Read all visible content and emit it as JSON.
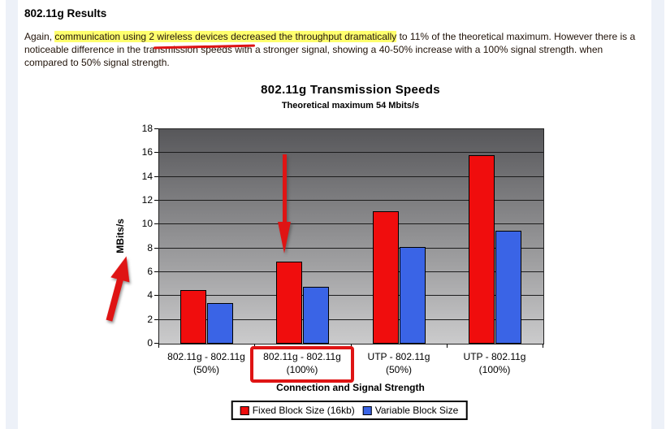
{
  "page": {
    "heading": "802.11g Results",
    "paragraph": {
      "pre": "Again, ",
      "highlighted": "communication using 2 wireless devices decreased the throughput dramatically",
      "post": " to 11% of the theoretical maximum. However there is a noticeable difference in the transmission speeds with a stronger signal, showing a 40-50% increase with a 100% signal strength. when compared to 50% signal strength."
    }
  },
  "chart_data": {
    "type": "bar",
    "title": "802.11g Transmission Speeds",
    "subtitle": "Theoretical maximum 54 Mbits/s",
    "xlabel": "Connection and Signal Strength",
    "ylabel": "MBits/s",
    "ylim": [
      0,
      18
    ],
    "ytick_step": 2,
    "grid": true,
    "legend_position": "bottom",
    "categories": [
      [
        "802.11g - 802.11g",
        "(50%)"
      ],
      [
        "802.11g - 802.11g",
        "(100%)"
      ],
      [
        "UTP - 802.11g",
        "(50%)"
      ],
      [
        "UTP - 802.11g",
        "(100%)"
      ]
    ],
    "series": [
      {
        "name": "Fixed Block Size (16kb)",
        "color": "#f00d0d",
        "values": [
          4.5,
          6.9,
          11.1,
          15.8
        ]
      },
      {
        "name": "Variable Block Size",
        "color": "#3a64e6",
        "values": [
          3.4,
          4.8,
          8.1,
          9.5
        ]
      }
    ],
    "plot_background": {
      "top_color": "#57575a",
      "bottom_color": "#cbcbcc"
    }
  },
  "annotations": {
    "color": "#df1414",
    "highlight_color": "#ffff6e",
    "boxed_category": "802.11g - 802.11g (100%)"
  }
}
